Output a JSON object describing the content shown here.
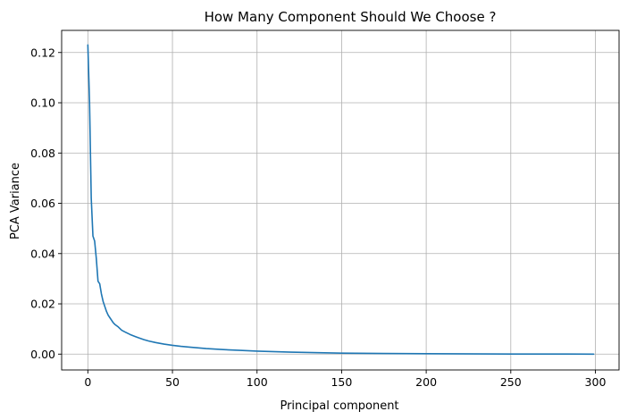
{
  "chart_data": {
    "type": "line",
    "title": "How Many Component Should We Choose ?",
    "xlabel": "Principal component",
    "ylabel": "PCA Variance",
    "xlim": [
      -15.5,
      314
    ],
    "ylim": [
      -0.0063,
      0.1288
    ],
    "grid": true,
    "legend": "none",
    "xticks": [
      0,
      50,
      100,
      150,
      200,
      250,
      300
    ],
    "xtick_labels": [
      "0",
      "50",
      "100",
      "150",
      "200",
      "250",
      "300"
    ],
    "yticks": [
      0.0,
      0.02,
      0.04,
      0.06,
      0.08,
      0.1,
      0.12
    ],
    "ytick_labels": [
      "0.00",
      "0.02",
      "0.04",
      "0.06",
      "0.08",
      "0.10",
      "0.12"
    ],
    "series": [
      {
        "color": "#1f77b4",
        "x": [
          0,
          1,
          2,
          3,
          4,
          5,
          6,
          7,
          8,
          9,
          10,
          11,
          12,
          13,
          14,
          15,
          16,
          18,
          20,
          22,
          25,
          28,
          30,
          33,
          36,
          40,
          45,
          50,
          55,
          60,
          70,
          80,
          90,
          100,
          120,
          150,
          175,
          200,
          250,
          299
        ],
        "y": [
          0.123,
          0.1,
          0.062,
          0.047,
          0.045,
          0.038,
          0.029,
          0.028,
          0.024,
          0.021,
          0.019,
          0.017,
          0.0155,
          0.0145,
          0.0135,
          0.0125,
          0.0118,
          0.0108,
          0.0095,
          0.0088,
          0.0078,
          0.007,
          0.0065,
          0.0058,
          0.0052,
          0.0046,
          0.004,
          0.0035,
          0.0031,
          0.0028,
          0.0022,
          0.0018,
          0.0015,
          0.0012,
          0.0008,
          0.0004,
          0.00025,
          0.00015,
          5e-05,
          0.0
        ]
      }
    ]
  }
}
